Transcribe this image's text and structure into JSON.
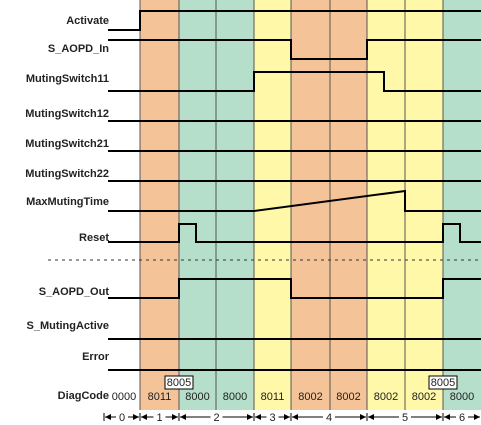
{
  "colors": {
    "orange": "#f5c398",
    "green": "#b6dfcb",
    "yellow": "#fff8a8",
    "line": "#000000"
  },
  "signals": [
    {
      "label": "Activate",
      "low_segments": [
        [
          0,
          140
        ]
      ]
    },
    {
      "label": "S_AOPD_In",
      "low_segments": [
        [
          291,
          367
        ]
      ]
    },
    {
      "label": "MutingSwitch11",
      "high_segments": [
        [
          254,
          384
        ]
      ]
    },
    {
      "label": "MutingSwitch12"
    },
    {
      "label": "MutingSwitch21"
    },
    {
      "label": "MutingSwitch22"
    },
    {
      "label": "MaxMutingTime"
    },
    {
      "label": "Reset",
      "high_segments": [
        [
          179,
          196
        ],
        [
          443,
          460
        ]
      ]
    },
    {
      "label": "S_AOPD_Out",
      "high_segments": [
        [
          179,
          291
        ],
        [
          443,
          481
        ]
      ]
    },
    {
      "label": "S_MutingActive"
    },
    {
      "label": "Error"
    }
  ],
  "diag": {
    "label": "DiagCode",
    "codes": [
      "0000",
      "8011",
      "8000",
      "8000",
      "8011",
      "8002",
      "8002",
      "8002",
      "8002",
      "8000"
    ],
    "transients": [
      "8005",
      "8005"
    ]
  },
  "phases": [
    "0",
    "1",
    "2",
    "3",
    "4",
    "5",
    "6"
  ]
}
